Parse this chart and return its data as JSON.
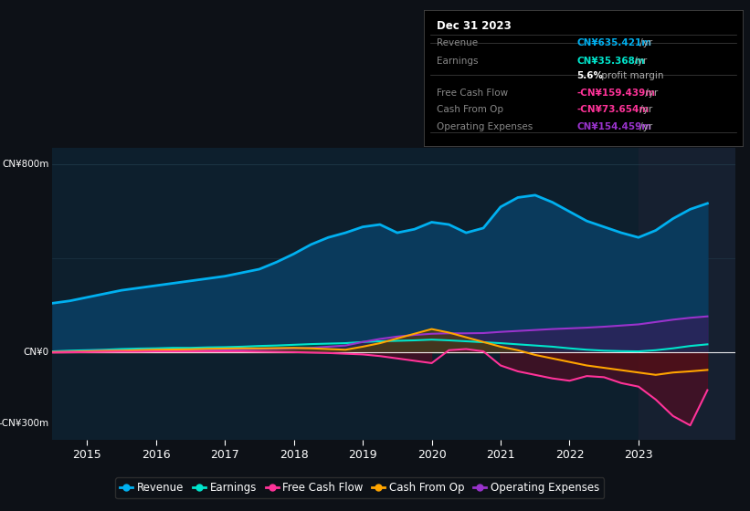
{
  "bg_color": "#0d1117",
  "plot_bg": "#0d1f2d",
  "highlight_bg": "#162030",
  "ylabel_top": "CN¥800m",
  "ylabel_zero": "CN¥0",
  "ylabel_neg": "-CN¥300m",
  "xlim": [
    2014.5,
    2024.4
  ],
  "ylim": [
    -370,
    870
  ],
  "revenue_color": "#00b0f0",
  "earnings_color": "#00e5cc",
  "fcf_color": "#ff3399",
  "cashfromop_color": "#ffa500",
  "opex_color": "#9933cc",
  "info_box_title": "Dec 31 2023",
  "info_rows": [
    {
      "label": "Revenue",
      "value": "CN¥635.421m",
      "suffix": " /yr",
      "value_color": "#00b0f0",
      "label_color": "#888888"
    },
    {
      "label": "Earnings",
      "value": "CN¥35.368m",
      "suffix": " /yr",
      "value_color": "#00e5cc",
      "label_color": "#888888"
    },
    {
      "label": "",
      "value": "5.6%",
      "suffix": " profit margin",
      "value_color": "#ffffff",
      "label_color": "#888888",
      "bold": true
    },
    {
      "label": "Free Cash Flow",
      "value": "-CN¥159.439m",
      "suffix": " /yr",
      "value_color": "#ff3399",
      "label_color": "#888888"
    },
    {
      "label": "Cash From Op",
      "value": "-CN¥73.654m",
      "suffix": " /yr",
      "value_color": "#ff3399",
      "label_color": "#888888"
    },
    {
      "label": "Operating Expenses",
      "value": "CN¥154.459m",
      "suffix": " /yr",
      "value_color": "#9933cc",
      "label_color": "#888888"
    }
  ],
  "x_years": [
    2014.5,
    2014.75,
    2015.0,
    2015.25,
    2015.5,
    2015.75,
    2016.0,
    2016.25,
    2016.5,
    2016.75,
    2017.0,
    2017.25,
    2017.5,
    2017.75,
    2018.0,
    2018.25,
    2018.5,
    2018.75,
    2019.0,
    2019.25,
    2019.5,
    2019.75,
    2020.0,
    2020.25,
    2020.5,
    2020.75,
    2021.0,
    2021.25,
    2021.5,
    2021.75,
    2022.0,
    2022.25,
    2022.5,
    2022.75,
    2023.0,
    2023.25,
    2023.5,
    2023.75,
    2024.0
  ],
  "revenue": [
    210,
    220,
    235,
    250,
    265,
    275,
    285,
    295,
    305,
    315,
    325,
    340,
    355,
    385,
    420,
    460,
    490,
    510,
    535,
    545,
    510,
    525,
    555,
    545,
    510,
    530,
    620,
    660,
    670,
    640,
    600,
    560,
    535,
    510,
    490,
    520,
    570,
    610,
    635
  ],
  "earnings": [
    5,
    8,
    10,
    12,
    15,
    17,
    18,
    20,
    20,
    22,
    23,
    25,
    28,
    30,
    33,
    36,
    38,
    40,
    45,
    48,
    50,
    52,
    55,
    52,
    48,
    44,
    40,
    35,
    30,
    25,
    18,
    12,
    8,
    6,
    5,
    10,
    18,
    28,
    35
  ],
  "fcf": [
    0,
    1,
    2,
    3,
    4,
    4,
    5,
    5,
    5,
    5,
    5,
    5,
    4,
    3,
    2,
    0,
    -2,
    -5,
    -8,
    -15,
    -25,
    -35,
    -45,
    10,
    15,
    5,
    -55,
    -80,
    -95,
    -110,
    -120,
    -100,
    -105,
    -130,
    -145,
    -200,
    -270,
    -310,
    -160
  ],
  "cashfromop": [
    2,
    3,
    5,
    7,
    8,
    10,
    12,
    13,
    14,
    16,
    17,
    18,
    18,
    19,
    20,
    18,
    15,
    12,
    25,
    40,
    60,
    80,
    100,
    85,
    65,
    45,
    25,
    10,
    -10,
    -25,
    -40,
    -55,
    -65,
    -75,
    -85,
    -95,
    -85,
    -80,
    -74
  ],
  "opex": [
    2,
    4,
    6,
    8,
    9,
    10,
    11,
    12,
    12,
    13,
    13,
    14,
    15,
    16,
    18,
    20,
    25,
    30,
    45,
    58,
    68,
    75,
    80,
    82,
    82,
    83,
    88,
    92,
    96,
    100,
    103,
    106,
    110,
    115,
    120,
    130,
    140,
    148,
    154
  ],
  "xticks": [
    2015,
    2016,
    2017,
    2018,
    2019,
    2020,
    2021,
    2022,
    2023
  ],
  "highlight_start": 2023.0,
  "legend": [
    {
      "label": "Revenue",
      "color": "#00b0f0"
    },
    {
      "label": "Earnings",
      "color": "#00e5cc"
    },
    {
      "label": "Free Cash Flow",
      "color": "#ff3399"
    },
    {
      "label": "Cash From Op",
      "color": "#ffa500"
    },
    {
      "label": "Operating Expenses",
      "color": "#9933cc"
    }
  ]
}
